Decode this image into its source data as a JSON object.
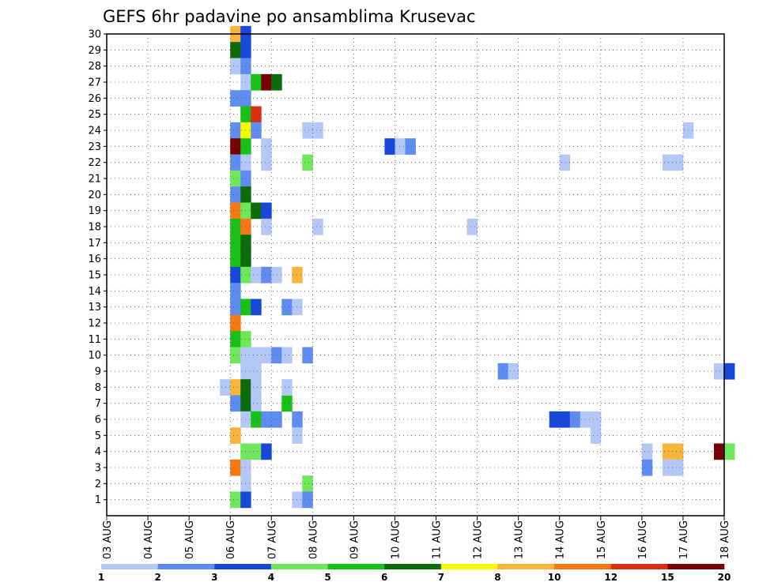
{
  "chart_data": {
    "type": "heatmap",
    "title": "GEFS 6hr padavine po ansamblima Krusevac",
    "xlabel": "",
    "ylabel": "",
    "x_start": "03 AUG 00Z",
    "x_step_hours": 6,
    "x_tick_labels": [
      "03 AUG",
      "04 AUG",
      "05 AUG",
      "06 AUG",
      "07 AUG",
      "08 AUG",
      "09 AUG",
      "10 AUG",
      "11 AUG",
      "12 AUG",
      "13 AUG",
      "14 AUG",
      "15 AUG",
      "16 AUG",
      "17 AUG",
      "18 AUG"
    ],
    "y_tick_labels": [
      "1",
      "2",
      "3",
      "4",
      "5",
      "6",
      "7",
      "8",
      "9",
      "10",
      "11",
      "12",
      "13",
      "14",
      "15",
      "16",
      "17",
      "18",
      "19",
      "20",
      "21",
      "22",
      "23",
      "24",
      "25",
      "26",
      "27",
      "28",
      "29",
      "30"
    ],
    "ylim": [
      0,
      30
    ],
    "grid": true,
    "legend": {
      "placement": "bottom",
      "thresholds": [
        "1",
        "2",
        "3",
        "4",
        "5",
        "6",
        "7",
        "8",
        "10",
        "12",
        "15",
        "20"
      ],
      "colors": [
        "#b4c8f8",
        "#5f8cf0",
        "#1848d8",
        "#6ee85a",
        "#18c018",
        "#0c6c0c",
        "#fafa00",
        "#fab43c",
        "#f57814",
        "#d83010",
        "#780000"
      ]
    },
    "cells": [
      {
        "x": "06 AUG 00Z",
        "ensemble": 30,
        "value": 8.5
      },
      {
        "x": "06 AUG 00Z",
        "ensemble": 29,
        "value": 6.5
      },
      {
        "x": "06 AUG 00Z",
        "ensemble": 28,
        "value": 1.5
      },
      {
        "x": "06 AUG 00Z",
        "ensemble": 26,
        "value": 2.5
      },
      {
        "x": "06 AUG 00Z",
        "ensemble": 24,
        "value": 2.5
      },
      {
        "x": "06 AUG 00Z",
        "ensemble": 23,
        "value": 21
      },
      {
        "x": "06 AUG 00Z",
        "ensemble": 22,
        "value": 2.5
      },
      {
        "x": "06 AUG 00Z",
        "ensemble": 21,
        "value": 4.5
      },
      {
        "x": "06 AUG 00Z",
        "ensemble": 20,
        "value": 2.5
      },
      {
        "x": "06 AUG 00Z",
        "ensemble": 19,
        "value": 11
      },
      {
        "x": "06 AUG 00Z",
        "ensemble": 18,
        "value": 5.5
      },
      {
        "x": "06 AUG 00Z",
        "ensemble": 17,
        "value": 5.5
      },
      {
        "x": "06 AUG 00Z",
        "ensemble": 16,
        "value": 5.5
      },
      {
        "x": "06 AUG 00Z",
        "ensemble": 15,
        "value": 3.5
      },
      {
        "x": "06 AUG 00Z",
        "ensemble": 14,
        "value": 2.5
      },
      {
        "x": "06 AUG 00Z",
        "ensemble": 13,
        "value": 2.5
      },
      {
        "x": "06 AUG 00Z",
        "ensemble": 12,
        "value": 11
      },
      {
        "x": "06 AUG 00Z",
        "ensemble": 11,
        "value": 5.5
      },
      {
        "x": "06 AUG 00Z",
        "ensemble": 10,
        "value": 4.5
      },
      {
        "x": "06 AUG 00Z",
        "ensemble": 8,
        "value": 9
      },
      {
        "x": "06 AUG 00Z",
        "ensemble": 7,
        "value": 2.5
      },
      {
        "x": "06 AUG 00Z",
        "ensemble": 5,
        "value": 9
      },
      {
        "x": "06 AUG 00Z",
        "ensemble": 3,
        "value": 11
      },
      {
        "x": "06 AUG 00Z",
        "ensemble": 1,
        "value": 4.5
      },
      {
        "x": "06 AUG 06Z",
        "ensemble": 30,
        "value": 3.5
      },
      {
        "x": "06 AUG 06Z",
        "ensemble": 29,
        "value": 3.5
      },
      {
        "x": "06 AUG 06Z",
        "ensemble": 28,
        "value": 2.5
      },
      {
        "x": "06 AUG 06Z",
        "ensemble": 27,
        "value": 1.5
      },
      {
        "x": "06 AUG 06Z",
        "ensemble": 26,
        "value": 2.5
      },
      {
        "x": "06 AUG 06Z",
        "ensemble": 25,
        "value": 5.5
      },
      {
        "x": "06 AUG 06Z",
        "ensemble": 24,
        "value": 7.5
      },
      {
        "x": "06 AUG 06Z",
        "ensemble": 23,
        "value": 5.5
      },
      {
        "x": "06 AUG 06Z",
        "ensemble": 22,
        "value": 1.5
      },
      {
        "x": "06 AUG 06Z",
        "ensemble": 21,
        "value": 2.5
      },
      {
        "x": "06 AUG 06Z",
        "ensemble": 20,
        "value": 6.5
      },
      {
        "x": "06 AUG 06Z",
        "ensemble": 19,
        "value": 4.5
      },
      {
        "x": "06 AUG 06Z",
        "ensemble": 18,
        "value": 11
      },
      {
        "x": "06 AUG 06Z",
        "ensemble": 17,
        "value": 6.5
      },
      {
        "x": "06 AUG 06Z",
        "ensemble": 16,
        "value": 6.5
      },
      {
        "x": "06 AUG 06Z",
        "ensemble": 15,
        "value": 4.5
      },
      {
        "x": "06 AUG 06Z",
        "ensemble": 13,
        "value": 5.5
      },
      {
        "x": "06 AUG 06Z",
        "ensemble": 11,
        "value": 4.5
      },
      {
        "x": "06 AUG 06Z",
        "ensemble": 10,
        "value": 1.5
      },
      {
        "x": "06 AUG 06Z",
        "ensemble": 9,
        "value": 1.5
      },
      {
        "x": "06 AUG 06Z",
        "ensemble": 8,
        "value": 6.5
      },
      {
        "x": "06 AUG 06Z",
        "ensemble": 7,
        "value": 6.5
      },
      {
        "x": "06 AUG 06Z",
        "ensemble": 6,
        "value": 1.5
      },
      {
        "x": "06 AUG 06Z",
        "ensemble": 4,
        "value": 4.5
      },
      {
        "x": "06 AUG 06Z",
        "ensemble": 3,
        "value": 1.5
      },
      {
        "x": "06 AUG 06Z",
        "ensemble": 2,
        "value": 1.5
      },
      {
        "x": "06 AUG 06Z",
        "ensemble": 1,
        "value": 3.5
      },
      {
        "x": "06 AUG 12Z",
        "ensemble": 27,
        "value": 5.5
      },
      {
        "x": "06 AUG 12Z",
        "ensemble": 25,
        "value": 13
      },
      {
        "x": "06 AUG 12Z",
        "ensemble": 24,
        "value": 2.5
      },
      {
        "x": "06 AUG 12Z",
        "ensemble": 19,
        "value": 6.5
      },
      {
        "x": "06 AUG 12Z",
        "ensemble": 15,
        "value": 1.5
      },
      {
        "x": "06 AUG 12Z",
        "ensemble": 13,
        "value": 3.5
      },
      {
        "x": "06 AUG 12Z",
        "ensemble": 10,
        "value": 1.5
      },
      {
        "x": "06 AUG 12Z",
        "ensemble": 9,
        "value": 1.5
      },
      {
        "x": "06 AUG 12Z",
        "ensemble": 8,
        "value": 1.5
      },
      {
        "x": "06 AUG 12Z",
        "ensemble": 7,
        "value": 1.5
      },
      {
        "x": "06 AUG 12Z",
        "ensemble": 6,
        "value": 5.5
      },
      {
        "x": "06 AUG 12Z",
        "ensemble": 4,
        "value": 4.5
      },
      {
        "x": "06 AUG 18Z",
        "ensemble": 27,
        "value": 21
      },
      {
        "x": "06 AUG 18Z",
        "ensemble": 23,
        "value": 1.5
      },
      {
        "x": "06 AUG 18Z",
        "ensemble": 22,
        "value": 1.5
      },
      {
        "x": "06 AUG 18Z",
        "ensemble": 19,
        "value": 3.5
      },
      {
        "x": "06 AUG 18Z",
        "ensemble": 18,
        "value": 1.5
      },
      {
        "x": "06 AUG 18Z",
        "ensemble": 15,
        "value": 2.5
      },
      {
        "x": "06 AUG 18Z",
        "ensemble": 10,
        "value": 1.5
      },
      {
        "x": "06 AUG 18Z",
        "ensemble": 6,
        "value": 2.5
      },
      {
        "x": "06 AUG 18Z",
        "ensemble": 4,
        "value": 3.5
      },
      {
        "x": "07 AUG 00Z",
        "ensemble": 27,
        "value": 6.5
      },
      {
        "x": "07 AUG 00Z",
        "ensemble": 15,
        "value": 1.5
      },
      {
        "x": "07 AUG 00Z",
        "ensemble": 10,
        "value": 2.5
      },
      {
        "x": "07 AUG 00Z",
        "ensemble": 6,
        "value": 2.5
      },
      {
        "x": "07 AUG 06Z",
        "ensemble": 10,
        "value": 1.5
      },
      {
        "x": "07 AUG 06Z",
        "ensemble": 7,
        "value": 5.5
      },
      {
        "x": "07 AUG 06Z",
        "ensemble": 8,
        "value": 1.5
      },
      {
        "x": "07 AUG 06Z",
        "ensemble": 13,
        "value": 2.5
      },
      {
        "x": "07 AUG 12Z",
        "ensemble": 15,
        "value": 9
      },
      {
        "x": "07 AUG 12Z",
        "ensemble": 13,
        "value": 1.5
      },
      {
        "x": "07 AUG 12Z",
        "ensemble": 6,
        "value": 2.5
      },
      {
        "x": "07 AUG 12Z",
        "ensemble": 5,
        "value": 1.5
      },
      {
        "x": "07 AUG 12Z",
        "ensemble": 1,
        "value": 1.5
      },
      {
        "x": "07 AUG 18Z",
        "ensemble": 24,
        "value": 1.5
      },
      {
        "x": "07 AUG 18Z",
        "ensemble": 22,
        "value": 4.5
      },
      {
        "x": "07 AUG 18Z",
        "ensemble": 10,
        "value": 2.5
      },
      {
        "x": "07 AUG 18Z",
        "ensemble": 2,
        "value": 4.5
      },
      {
        "x": "07 AUG 18Z",
        "ensemble": 1,
        "value": 2.5
      },
      {
        "x": "08 AUG 00Z",
        "ensemble": 24,
        "value": 1.5
      },
      {
        "x": "08 AUG 00Z",
        "ensemble": 18,
        "value": 1.5
      },
      {
        "x": "05 AUG 18Z",
        "ensemble": 8,
        "value": 1.5
      },
      {
        "x": "09 AUG 18Z",
        "ensemble": 23,
        "value": 3.5
      },
      {
        "x": "10 AUG 00Z",
        "ensemble": 23,
        "value": 1.5
      },
      {
        "x": "10 AUG 06Z",
        "ensemble": 23,
        "value": 2.5
      },
      {
        "x": "11 AUG 18Z",
        "ensemble": 18,
        "value": 1.5
      },
      {
        "x": "12 AUG 12Z",
        "ensemble": 9,
        "value": 2.5
      },
      {
        "x": "12 AUG 18Z",
        "ensemble": 9,
        "value": 1.5
      },
      {
        "x": "13 AUG 18Z",
        "ensemble": 6,
        "value": 3.5
      },
      {
        "x": "14 AUG 00Z",
        "ensemble": 6,
        "value": 3.5
      },
      {
        "x": "14 AUG 06Z",
        "ensemble": 6,
        "value": 2.5
      },
      {
        "x": "14 AUG 12Z",
        "ensemble": 6,
        "value": 1.5
      },
      {
        "x": "14 AUG 18Z",
        "ensemble": 6,
        "value": 1.5
      },
      {
        "x": "14 AUG 18Z",
        "ensemble": 5,
        "value": 1.5
      },
      {
        "x": "14 AUG 00Z",
        "ensemble": 22,
        "value": 1.5
      },
      {
        "x": "16 AUG 00Z",
        "ensemble": 4,
        "value": 1.5
      },
      {
        "x": "16 AUG 00Z",
        "ensemble": 3,
        "value": 2.5
      },
      {
        "x": "16 AUG 12Z",
        "ensemble": 22,
        "value": 1.5
      },
      {
        "x": "16 AUG 18Z",
        "ensemble": 22,
        "value": 1.5
      },
      {
        "x": "16 AUG 12Z",
        "ensemble": 4,
        "value": 9
      },
      {
        "x": "16 AUG 18Z",
        "ensemble": 4,
        "value": 9
      },
      {
        "x": "16 AUG 12Z",
        "ensemble": 3,
        "value": 1.5
      },
      {
        "x": "16 AUG 18Z",
        "ensemble": 3,
        "value": 1.5
      },
      {
        "x": "17 AUG 00Z",
        "ensemble": 24,
        "value": 1.5
      },
      {
        "x": "17 AUG 18Z",
        "ensemble": 4,
        "value": 21
      },
      {
        "x": "18 AUG 00Z",
        "ensemble": 4,
        "value": 4.5
      },
      {
        "x": "17 AUG 18Z",
        "ensemble": 9,
        "value": 1.5
      },
      {
        "x": "18 AUG 00Z",
        "ensemble": 9,
        "value": 3.5
      }
    ]
  }
}
